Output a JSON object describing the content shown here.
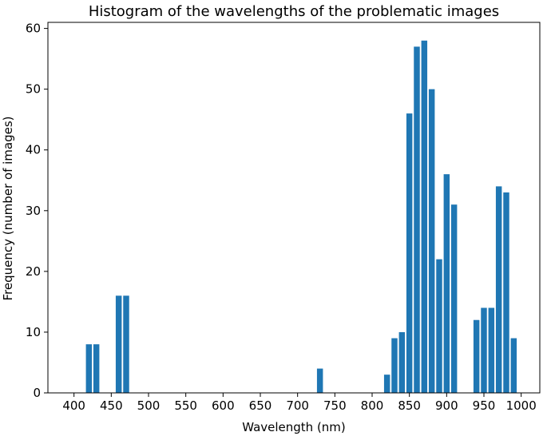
{
  "chart_data": {
    "type": "bar",
    "title": "Histogram of the wavelengths of the problematic images",
    "xlabel": "Wavelength (nm)",
    "ylabel": "Frequency (number of images)",
    "xlim": [
      365,
      1025
    ],
    "ylim": [
      0,
      61
    ],
    "xticks": [
      400,
      450,
      500,
      550,
      600,
      650,
      700,
      750,
      800,
      850,
      900,
      950,
      1000
    ],
    "yticks": [
      0,
      10,
      20,
      30,
      40,
      50,
      60
    ],
    "bar_width": 8,
    "bar_color": "#1f77b4",
    "grid": false,
    "bars": [
      {
        "x": 420,
        "value": 8
      },
      {
        "x": 430,
        "value": 8
      },
      {
        "x": 460,
        "value": 16
      },
      {
        "x": 470,
        "value": 16
      },
      {
        "x": 730,
        "value": 4
      },
      {
        "x": 820,
        "value": 3
      },
      {
        "x": 830,
        "value": 9
      },
      {
        "x": 840,
        "value": 10
      },
      {
        "x": 850,
        "value": 46
      },
      {
        "x": 860,
        "value": 57
      },
      {
        "x": 870,
        "value": 58
      },
      {
        "x": 880,
        "value": 50
      },
      {
        "x": 890,
        "value": 22
      },
      {
        "x": 900,
        "value": 36
      },
      {
        "x": 910,
        "value": 31
      },
      {
        "x": 940,
        "value": 12
      },
      {
        "x": 950,
        "value": 14
      },
      {
        "x": 960,
        "value": 14
      },
      {
        "x": 970,
        "value": 34
      },
      {
        "x": 980,
        "value": 33
      },
      {
        "x": 990,
        "value": 9
      }
    ]
  }
}
